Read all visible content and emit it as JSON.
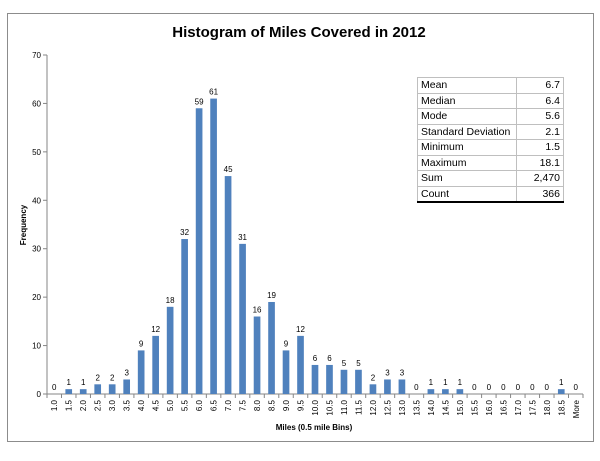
{
  "chart_data": {
    "type": "bar",
    "title": "Histogram of Miles Covered in 2012",
    "xlabel": "Miles (0.5 mile Bins)",
    "ylabel": "Frequency",
    "ylim": [
      0,
      70
    ],
    "yticks": [
      0,
      10,
      20,
      30,
      40,
      50,
      60,
      70
    ],
    "grid": false,
    "bar_color": "#4f81bd",
    "categories": [
      "1.0",
      "1.5",
      "2.0",
      "2.5",
      "3.0",
      "3.5",
      "4.0",
      "4.5",
      "5.0",
      "5.5",
      "6.0",
      "6.5",
      "7.0",
      "7.5",
      "8.0",
      "8.5",
      "9.0",
      "9.5",
      "10.0",
      "10.5",
      "11.0",
      "11.5",
      "12.0",
      "12.5",
      "13.0",
      "13.5",
      "14.0",
      "14.5",
      "15.0",
      "15.5",
      "16.0",
      "16.5",
      "17.0",
      "17.5",
      "18.0",
      "18.5",
      "More"
    ],
    "values": [
      0,
      1,
      1,
      2,
      2,
      3,
      9,
      12,
      18,
      32,
      59,
      61,
      45,
      31,
      16,
      19,
      9,
      12,
      6,
      6,
      5,
      5,
      2,
      3,
      3,
      0,
      1,
      1,
      1,
      0,
      0,
      0,
      0,
      0,
      0,
      1,
      0
    ]
  },
  "stats": {
    "rows": [
      {
        "label": "Mean",
        "value": "6.7"
      },
      {
        "label": "Median",
        "value": "6.4"
      },
      {
        "label": "Mode",
        "value": "5.6"
      },
      {
        "label": "Standard Deviation",
        "value": "2.1"
      },
      {
        "label": "Minimum",
        "value": "1.5"
      },
      {
        "label": "Maximum",
        "value": "18.1"
      },
      {
        "label": "Sum",
        "value": "2,470"
      },
      {
        "label": "Count",
        "value": "366"
      }
    ]
  }
}
